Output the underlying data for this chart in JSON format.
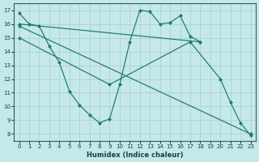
{
  "xlabel": "Humidex (Indice chaleur)",
  "bg_color": "#c5e8e8",
  "grid_color": "#aacccc",
  "line_color": "#1a7a6e",
  "xlim": [
    -0.5,
    23.5
  ],
  "ylim": [
    7.5,
    17.5
  ],
  "xticks": [
    0,
    1,
    2,
    3,
    4,
    5,
    6,
    7,
    8,
    9,
    10,
    11,
    12,
    13,
    14,
    15,
    16,
    17,
    18,
    19,
    20,
    21,
    22,
    23
  ],
  "yticks": [
    8,
    9,
    10,
    11,
    12,
    13,
    14,
    15,
    16,
    17
  ],
  "series": [
    {
      "x": [
        0,
        1,
        2,
        3,
        4,
        5,
        6,
        7,
        8,
        9,
        10,
        11,
        12,
        13,
        14,
        15,
        16,
        17,
        18
      ],
      "y": [
        16.8,
        16.0,
        15.85,
        14.4,
        13.2,
        11.1,
        10.1,
        9.4,
        8.8,
        9.1,
        11.6,
        14.7,
        17.0,
        16.9,
        16.0,
        16.1,
        16.6,
        15.1,
        14.7
      ]
    },
    {
      "x": [
        0,
        18
      ],
      "y": [
        16.0,
        14.7
      ]
    },
    {
      "x": [
        0,
        23
      ],
      "y": [
        15.85,
        8.0
      ]
    },
    {
      "x": [
        0,
        9,
        17,
        20,
        21,
        22,
        23
      ],
      "y": [
        15.0,
        11.6,
        14.7,
        12.0,
        10.3,
        8.8,
        7.9
      ]
    }
  ]
}
